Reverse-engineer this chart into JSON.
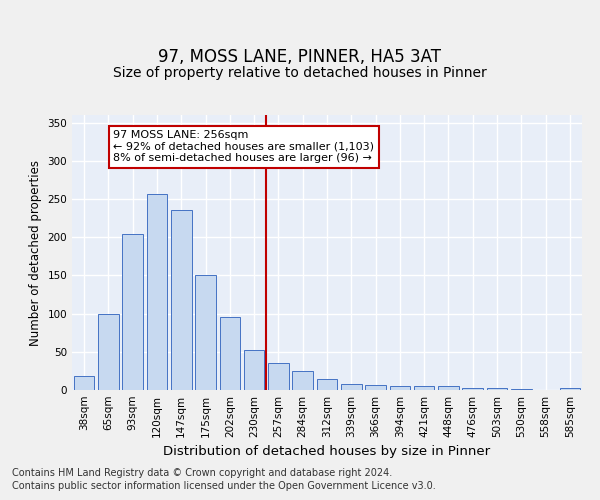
{
  "title": "97, MOSS LANE, PINNER, HA5 3AT",
  "subtitle": "Size of property relative to detached houses in Pinner",
  "xlabel": "Distribution of detached houses by size in Pinner",
  "ylabel": "Number of detached properties",
  "categories": [
    "38sqm",
    "65sqm",
    "93sqm",
    "120sqm",
    "147sqm",
    "175sqm",
    "202sqm",
    "230sqm",
    "257sqm",
    "284sqm",
    "312sqm",
    "339sqm",
    "366sqm",
    "394sqm",
    "421sqm",
    "448sqm",
    "476sqm",
    "503sqm",
    "530sqm",
    "558sqm",
    "585sqm"
  ],
  "values": [
    18,
    100,
    204,
    256,
    236,
    150,
    96,
    52,
    35,
    25,
    14,
    8,
    6,
    5,
    5,
    5,
    3,
    2,
    1,
    0,
    3
  ],
  "bar_color": "#c7d9f0",
  "bar_edge_color": "#4472c4",
  "vline_x_index": 8,
  "vline_color": "#c00000",
  "annotation_text": "97 MOSS LANE: 256sqm\n← 92% of detached houses are smaller (1,103)\n8% of semi-detached houses are larger (96) →",
  "annotation_box_color": "#c00000",
  "ylim": [
    0,
    360
  ],
  "yticks": [
    0,
    50,
    100,
    150,
    200,
    250,
    300,
    350
  ],
  "background_color": "#e8eef8",
  "grid_color": "#ffffff",
  "fig_bg_color": "#f0f0f0",
  "footer_line1": "Contains HM Land Registry data © Crown copyright and database right 2024.",
  "footer_line2": "Contains public sector information licensed under the Open Government Licence v3.0.",
  "title_fontsize": 12,
  "subtitle_fontsize": 10,
  "xlabel_fontsize": 9.5,
  "ylabel_fontsize": 8.5,
  "tick_fontsize": 7.5,
  "annotation_fontsize": 8,
  "footer_fontsize": 7
}
